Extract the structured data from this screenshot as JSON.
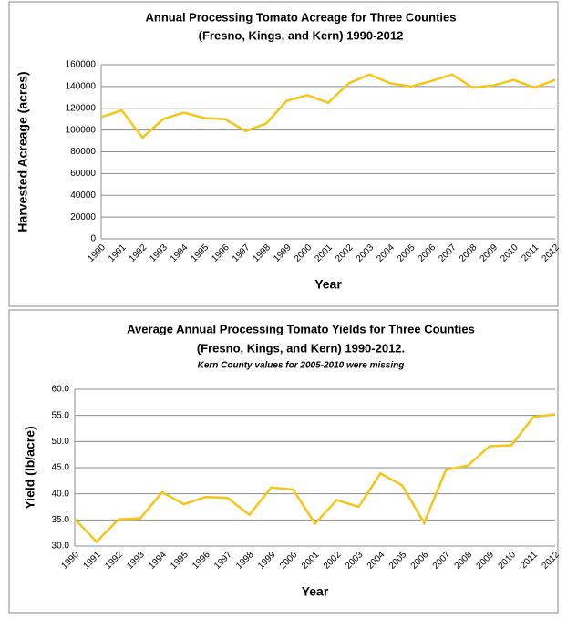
{
  "chart_data": [
    {
      "type": "line",
      "title": [
        "Annual Processing Tomato Acreage for Three Counties",
        "(Fresno, Kings, and Kern) 1990-2012"
      ],
      "x_label": "Year",
      "y_label": "Harvested Acreage (acres)",
      "categories": [
        "1990",
        "1991",
        "1992",
        "1993",
        "1994",
        "1995",
        "1996",
        "1997",
        "1998",
        "1999",
        "2000",
        "2001",
        "2002",
        "2003",
        "2004",
        "2005",
        "2006",
        "2007",
        "2008",
        "2009",
        "2010",
        "2011",
        "2012"
      ],
      "series": [
        {
          "color": "#f5c518",
          "values": [
            112000,
            118000,
            93000,
            110000,
            116000,
            111000,
            110000,
            99000,
            106000,
            127000,
            132000,
            125000,
            143000,
            151000,
            143000,
            140000,
            145000,
            151000,
            139000,
            141000,
            146000,
            139000,
            146000
          ]
        }
      ],
      "ylim": [
        0,
        160000
      ],
      "yticks": [
        0,
        20000,
        40000,
        60000,
        80000,
        100000,
        120000,
        140000,
        160000
      ],
      "grid": true
    },
    {
      "type": "line",
      "title": [
        "Average Annual Processing Tomato Yields for Three Counties",
        "(Fresno, Kings, and Kern) 1990-2012."
      ],
      "subtitle": "Kern County values for 2005-2010 were missing",
      "x_label": "Year",
      "y_label": "Yield (lb/acre)",
      "categories": [
        "1990",
        "1991",
        "1992",
        "1993",
        "1994",
        "1995",
        "1996",
        "1997",
        "1998",
        "1999",
        "2000",
        "2001",
        "2002",
        "2003",
        "2004",
        "2005",
        "2006",
        "2007",
        "2008",
        "2009",
        "2010",
        "2011",
        "2012"
      ],
      "series": [
        {
          "color": "#f5c518",
          "values": [
            35.2,
            30.8,
            35.1,
            35.3,
            40.3,
            38.0,
            39.4,
            39.2,
            36.0,
            41.2,
            40.8,
            34.3,
            38.8,
            37.5,
            43.9,
            41.6,
            34.4,
            44.6,
            45.4,
            49.1,
            49.3,
            54.7,
            55.2
          ]
        }
      ],
      "ylim": [
        30,
        60
      ],
      "yticks": [
        {
          "value": 30,
          "label": "30.0"
        },
        {
          "value": 35,
          "label": "35.0"
        },
        {
          "value": 40,
          "label": "40.0"
        },
        {
          "value": 45,
          "label": "45.0"
        },
        {
          "value": 50,
          "label": "50.0"
        },
        {
          "value": 55,
          "label": "55.0"
        },
        {
          "value": 60,
          "label": "60.0"
        }
      ],
      "grid": true
    }
  ]
}
